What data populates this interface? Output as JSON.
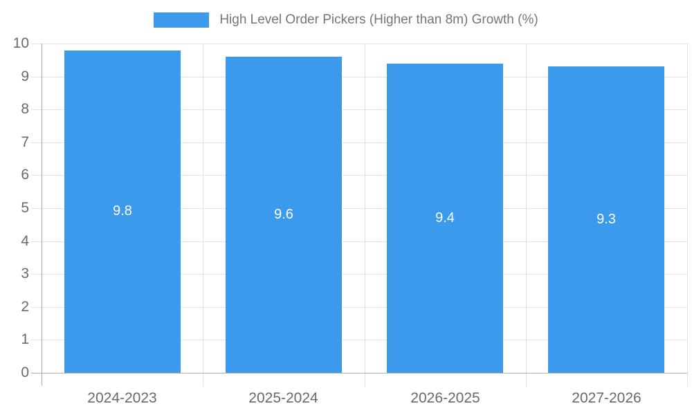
{
  "chart_data": {
    "type": "bar",
    "categories": [
      "2024-2023",
      "2025-2024",
      "2026-2025",
      "2027-2026"
    ],
    "values": [
      9.8,
      9.6,
      9.4,
      9.3
    ],
    "title": "High Level Order Pickers (Higher than 8m) Growth (%)",
    "xlabel": "",
    "ylabel": "",
    "ylim": [
      0,
      10
    ],
    "ytick_step": 1,
    "yticks": [
      0,
      1,
      2,
      3,
      4,
      5,
      6,
      7,
      8,
      9,
      10
    ],
    "grid": true,
    "legend_position": "top",
    "legend": {
      "label": "High Level Order Pickers (Higher than 8m) Growth (%)"
    },
    "value_labels": [
      "9.8",
      "9.6",
      "9.4",
      "9.3"
    ],
    "colors": {
      "bar": "#3b9aec",
      "grid": "#e2e2e2",
      "axis": "#a8a8a8",
      "tick_text": "#696969",
      "legend_text": "#757575",
      "value_label_text": "#ffffff",
      "background": "#ffffff"
    }
  }
}
